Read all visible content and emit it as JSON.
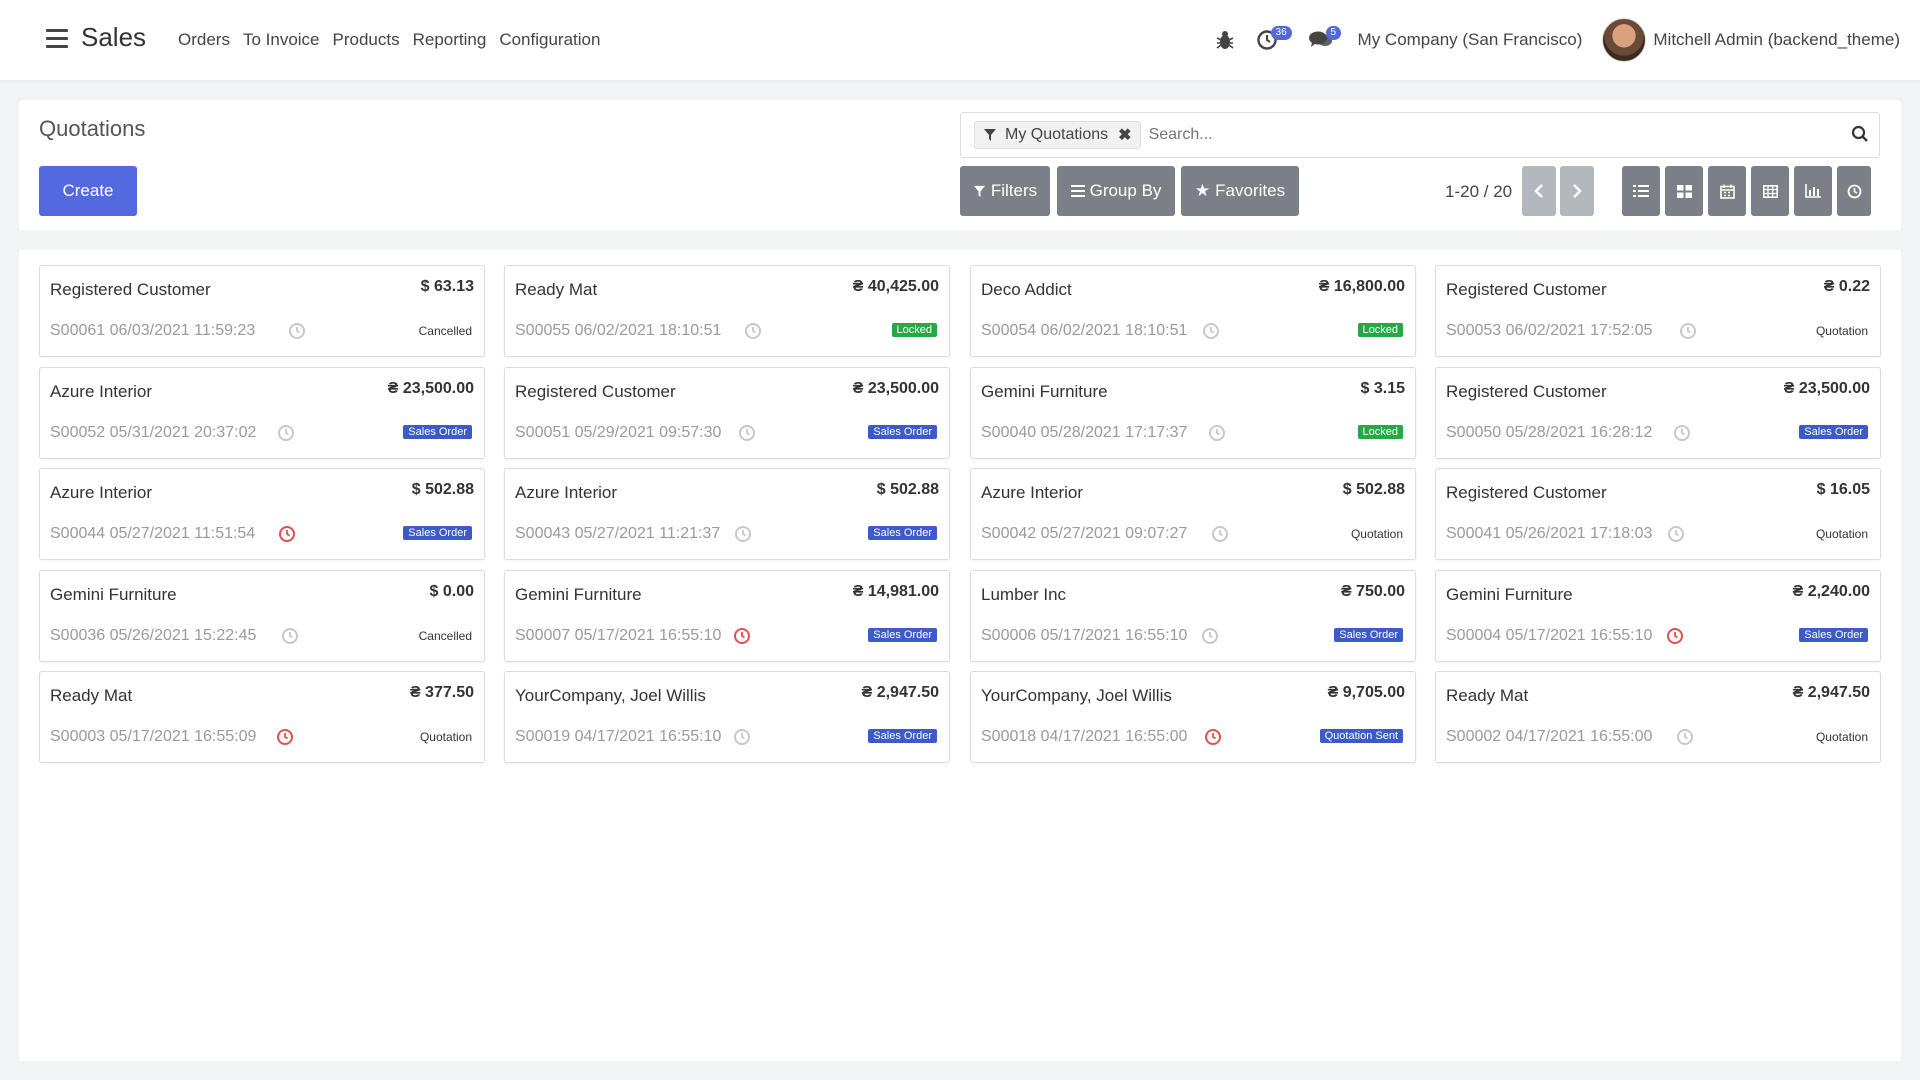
{
  "app": {
    "name": "Sales"
  },
  "menu": [
    "Orders",
    "To Invoice",
    "Products",
    "Reporting",
    "Configuration"
  ],
  "systray": {
    "activity_count": "36",
    "message_count": "5",
    "company": "My Company (San Francisco)",
    "user": "Mitchell Admin (backend_theme)",
    "icons": [
      "bug-icon",
      "clock-icon",
      "chat-icon"
    ]
  },
  "control": {
    "breadcrumb": "Quotations",
    "create_label": "Create",
    "facet_label": "My Quotations",
    "search_placeholder": "Search...",
    "filters_label": "Filters",
    "groupby_label": "Group By",
    "favorites_label": "Favorites",
    "pager": "1-20 / 20",
    "views": [
      "list-view-icon",
      "kanban-view-icon",
      "calendar-view-icon",
      "pivot-view-icon",
      "graph-view-icon",
      "activity-view-icon"
    ]
  },
  "colors": {
    "primary": "#5468e0",
    "locked": "#28a745",
    "sales_order": "#3d5ac9",
    "overdue": "#e44d4d"
  },
  "cards": [
    {
      "name": "Registered Customer",
      "amount": "$ 63.13",
      "ref": "S00061 06/03/2021 11:59:23",
      "status": "Cancelled",
      "status_style": "text",
      "overdue": false
    },
    {
      "name": "Ready Mat",
      "amount": "₴ 40,425.00",
      "ref": "S00055 06/02/2021 18:10:51",
      "status": "Locked",
      "status_style": "locked",
      "overdue": false
    },
    {
      "name": "Deco Addict",
      "amount": "₴ 16,800.00",
      "ref": "S00054 06/02/2021 18:10:51",
      "status": "Locked",
      "status_style": "locked",
      "overdue": false
    },
    {
      "name": "Registered Customer",
      "amount": "₴ 0.22",
      "ref": "S00053 06/02/2021 17:52:05",
      "status": "Quotation",
      "status_style": "text",
      "overdue": false
    },
    {
      "name": "Azure Interior",
      "amount": "₴ 23,500.00",
      "ref": "S00052 05/31/2021 20:37:02",
      "status": "Sales Order",
      "status_style": "sales",
      "overdue": false
    },
    {
      "name": "Registered Customer",
      "amount": "₴ 23,500.00",
      "ref": "S00051 05/29/2021 09:57:30",
      "status": "Sales Order",
      "status_style": "sales",
      "overdue": false
    },
    {
      "name": "Gemini Furniture",
      "amount": "$ 3.15",
      "ref": "S00040 05/28/2021 17:17:37",
      "status": "Locked",
      "status_style": "locked",
      "overdue": false
    },
    {
      "name": "Registered Customer",
      "amount": "₴ 23,500.00",
      "ref": "S00050 05/28/2021 16:28:12",
      "status": "Sales Order",
      "status_style": "sales",
      "overdue": false
    },
    {
      "name": "Azure Interior",
      "amount": "$ 502.88",
      "ref": "S00044 05/27/2021 11:51:54",
      "status": "Sales Order",
      "status_style": "sales",
      "overdue": true
    },
    {
      "name": "Azure Interior",
      "amount": "$ 502.88",
      "ref": "S00043 05/27/2021 11:21:37",
      "status": "Sales Order",
      "status_style": "sales",
      "overdue": false
    },
    {
      "name": "Azure Interior",
      "amount": "$ 502.88",
      "ref": "S00042 05/27/2021 09:07:27",
      "status": "Quotation",
      "status_style": "text",
      "overdue": false
    },
    {
      "name": "Registered Customer",
      "amount": "$ 16.05",
      "ref": "S00041 05/26/2021 17:18:03",
      "status": "Quotation",
      "status_style": "text",
      "overdue": false
    },
    {
      "name": "Gemini Furniture",
      "amount": "$ 0.00",
      "ref": "S00036 05/26/2021 15:22:45",
      "status": "Cancelled",
      "status_style": "text",
      "overdue": false
    },
    {
      "name": "Gemini Furniture",
      "amount": "₴ 14,981.00",
      "ref": "S00007 05/17/2021 16:55:10",
      "status": "Sales Order",
      "status_style": "sales",
      "overdue": true
    },
    {
      "name": "Lumber Inc",
      "amount": "₴ 750.00",
      "ref": "S00006 05/17/2021 16:55:10",
      "status": "Sales Order",
      "status_style": "sales",
      "overdue": false
    },
    {
      "name": "Gemini Furniture",
      "amount": "₴ 2,240.00",
      "ref": "S00004 05/17/2021 16:55:10",
      "status": "Sales Order",
      "status_style": "sales",
      "overdue": true
    },
    {
      "name": "Ready Mat",
      "amount": "₴ 377.50",
      "ref": "S00003 05/17/2021 16:55:09",
      "status": "Quotation",
      "status_style": "text",
      "overdue": true
    },
    {
      "name": "YourCompany, Joel Willis",
      "amount": "₴ 2,947.50",
      "ref": "S00019 04/17/2021 16:55:10",
      "status": "Sales Order",
      "status_style": "sales",
      "overdue": false
    },
    {
      "name": "YourCompany, Joel Willis",
      "amount": "₴ 9,705.00",
      "ref": "S00018 04/17/2021 16:55:00",
      "status": "Quotation Sent",
      "status_style": "sales",
      "overdue": true
    },
    {
      "name": "Ready Mat",
      "amount": "₴ 2,947.50",
      "ref": "S00002 04/17/2021 16:55:00",
      "status": "Quotation",
      "status_style": "text",
      "overdue": false
    }
  ]
}
